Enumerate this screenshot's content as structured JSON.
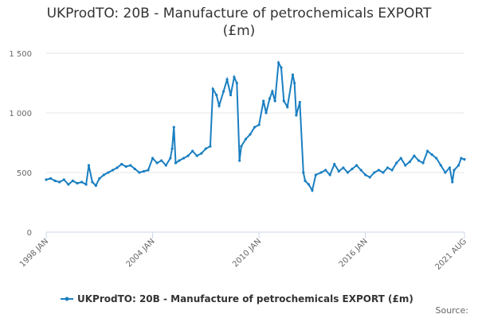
{
  "chart_data": {
    "type": "line",
    "title": "UKProdTO: 20B - Manufacture of petrochemicals EXPORT (£m)",
    "source": "Source:",
    "x": [
      1998.0,
      1998.25,
      1998.5,
      1998.75,
      1999.0,
      1999.25,
      1999.5,
      1999.75,
      2000.0,
      2000.25,
      2000.4,
      2000.6,
      2000.8,
      2001.0,
      2001.25,
      2001.5,
      2001.75,
      2002.0,
      2002.25,
      2002.5,
      2002.75,
      2003.0,
      2003.25,
      2003.5,
      2003.75,
      2004.0,
      2004.25,
      2004.5,
      2004.75,
      2005.0,
      2005.1,
      2005.2,
      2005.3,
      2005.5,
      2005.75,
      2006.0,
      2006.25,
      2006.5,
      2006.75,
      2007.0,
      2007.25,
      2007.4,
      2007.6,
      2007.75,
      2008.0,
      2008.2,
      2008.4,
      2008.6,
      2008.75,
      2008.9,
      2009.0,
      2009.25,
      2009.5,
      2009.75,
      2010.0,
      2010.25,
      2010.4,
      2010.6,
      2010.75,
      2010.9,
      2011.1,
      2011.25,
      2011.4,
      2011.6,
      2011.9,
      2012.0,
      2012.1,
      2012.3,
      2012.5,
      2012.6,
      2012.8,
      2013.0,
      2013.2,
      2013.5,
      2013.75,
      2014.0,
      2014.25,
      2014.5,
      2014.75,
      2015.0,
      2015.25,
      2015.5,
      2015.75,
      2016.0,
      2016.25,
      2016.5,
      2016.75,
      2017.0,
      2017.25,
      2017.5,
      2017.75,
      2018.0,
      2018.25,
      2018.5,
      2018.75,
      2019.0,
      2019.25,
      2019.5,
      2019.75,
      2020.0,
      2020.25,
      2020.5,
      2020.75,
      2020.9,
      2021.0,
      2021.25,
      2021.4,
      2021.583
    ],
    "series": [
      {
        "name": "UKProdTO: 20B - Manufacture of petrochemicals EXPORT (£m)",
        "color": "#1a7fc1",
        "values": [
          440,
          450,
          430,
          420,
          440,
          400,
          430,
          410,
          420,
          400,
          560,
          420,
          390,
          450,
          480,
          500,
          520,
          540,
          570,
          550,
          560,
          530,
          500,
          510,
          520,
          620,
          580,
          600,
          560,
          620,
          700,
          880,
          580,
          600,
          620,
          640,
          680,
          640,
          660,
          700,
          720,
          1200,
          1150,
          1060,
          1180,
          1280,
          1150,
          1300,
          1250,
          600,
          720,
          780,
          820,
          880,
          900,
          1100,
          1000,
          1120,
          1180,
          1100,
          1420,
          1380,
          1100,
          1050,
          1320,
          1250,
          980,
          1090,
          500,
          430,
          400,
          350,
          480,
          500,
          520,
          480,
          570,
          510,
          540,
          500,
          530,
          560,
          520,
          480,
          460,
          500,
          520,
          500,
          540,
          520,
          580,
          620,
          560,
          590,
          640,
          600,
          580,
          680,
          650,
          620,
          560,
          500,
          540,
          420,
          520,
          560,
          620,
          610
        ]
      }
    ],
    "xlim": [
      1998.0,
      2021.583
    ],
    "xticks": [
      {
        "value": 1998.0,
        "label": "1998 JAN"
      },
      {
        "value": 2004.0,
        "label": "2004 JAN"
      },
      {
        "value": 2010.0,
        "label": "2010 JAN"
      },
      {
        "value": 2016.0,
        "label": "2016 JAN"
      },
      {
        "value": 2021.583,
        "label": "2021 AUG"
      }
    ],
    "ylim": [
      0,
      1500
    ],
    "yticks": [
      0,
      500,
      {
        "value": 1000,
        "label": "1 000"
      },
      {
        "value": 1500,
        "label": "1 500"
      }
    ],
    "grid": true
  }
}
